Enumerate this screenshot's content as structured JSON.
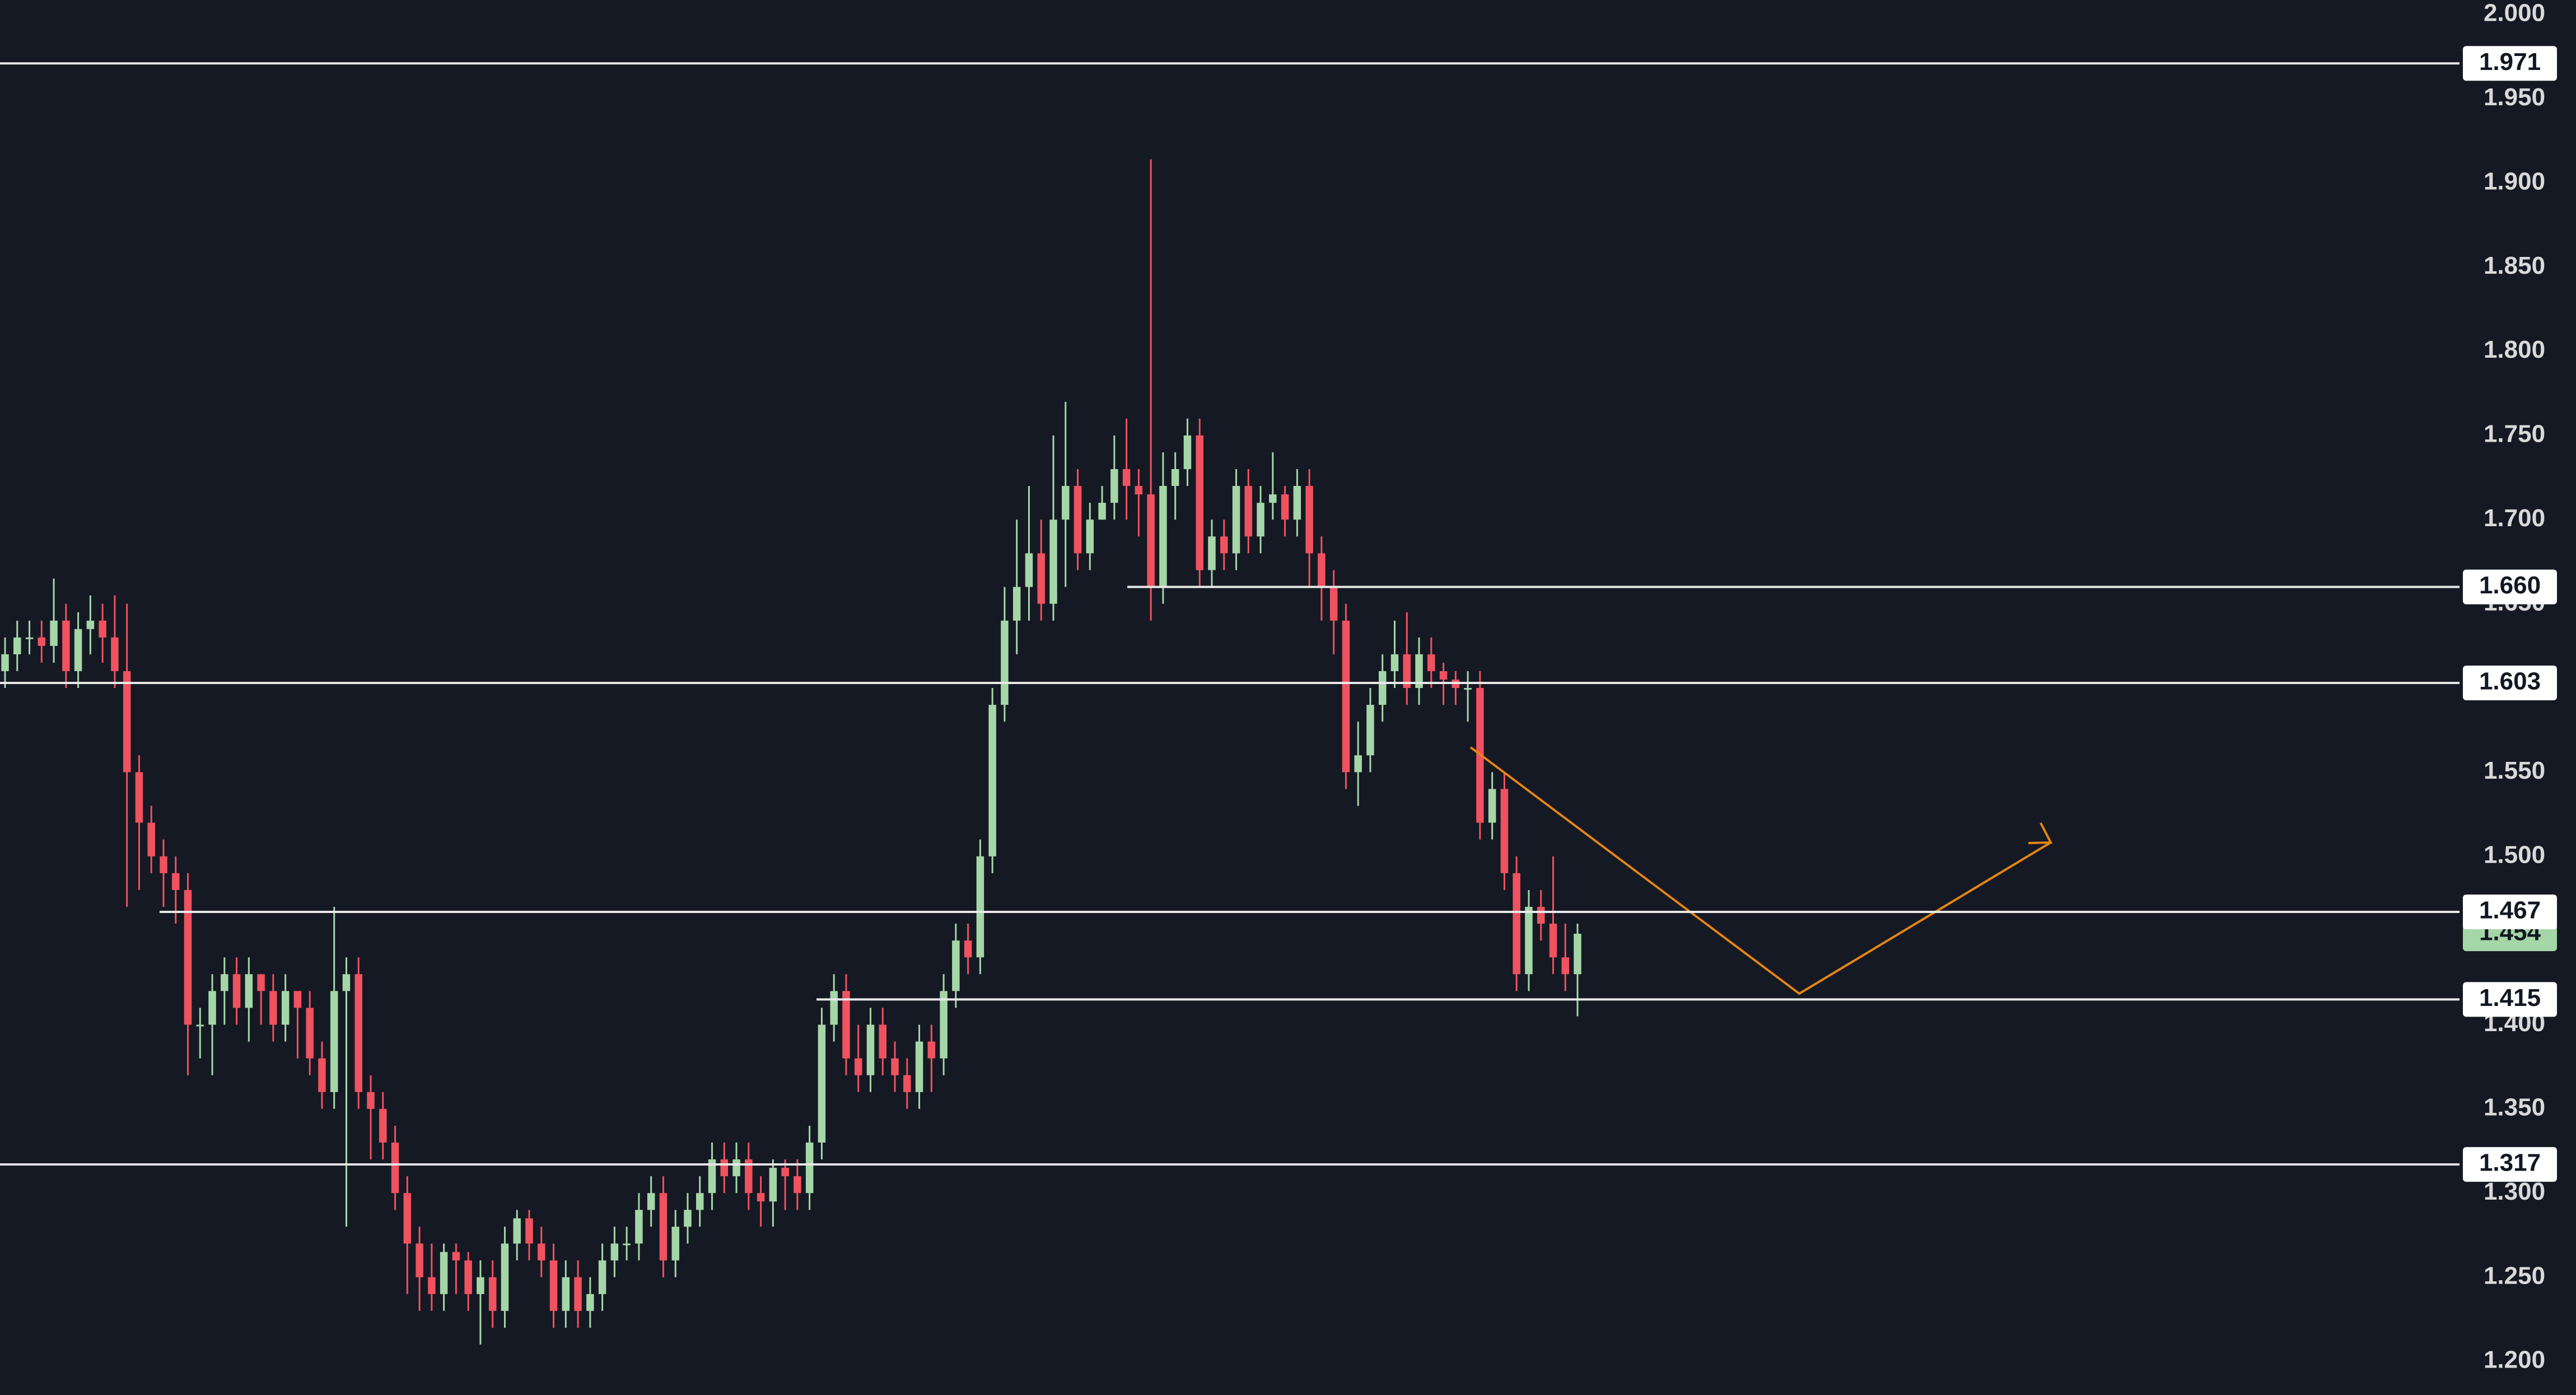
{
  "chart_data": {
    "type": "candlestick",
    "up_color": "#a5d6a7",
    "down_color": "#f0525f",
    "level_color": "#e8e8e8",
    "ylim": [
      1.2,
      2.0
    ],
    "yticks": [
      {
        "value": 1.2,
        "label": "1.200"
      },
      {
        "value": 1.25,
        "label": "1.250"
      },
      {
        "value": 1.3,
        "label": "1.300"
      },
      {
        "value": 1.35,
        "label": "1.350"
      },
      {
        "value": 1.4,
        "label": "1.400"
      },
      {
        "value": 1.45,
        "label": "1.450"
      },
      {
        "value": 1.5,
        "label": "1.500"
      },
      {
        "value": 1.55,
        "label": "1.550"
      },
      {
        "value": 1.6,
        "label": "1.600"
      },
      {
        "value": 1.65,
        "label": "1.650"
      },
      {
        "value": 1.7,
        "label": "1.700"
      },
      {
        "value": 1.75,
        "label": "1.750"
      },
      {
        "value": 1.8,
        "label": "1.800"
      },
      {
        "value": 1.85,
        "label": "1.850"
      },
      {
        "value": 1.9,
        "label": "1.900"
      },
      {
        "value": 1.95,
        "label": "1.950"
      },
      {
        "value": 2.0,
        "label": "2.000"
      }
    ],
    "levels": [
      1.971,
      {
        "value": 1.66,
        "label": "1.660"
      },
      1.603,
      1.467,
      1.415,
      1.317
    ],
    "open": [
      1.61,
      1.62,
      1.63,
      1.63,
      1.625,
      1.64,
      1.61,
      1.635,
      1.64,
      1.63,
      1.61,
      1.55,
      1.52,
      1.5,
      1.49,
      1.48,
      1.4,
      1.4,
      1.42,
      1.43,
      1.41,
      1.43,
      1.42,
      1.4,
      1.42,
      1.41,
      1.38,
      1.36,
      1.42,
      1.43,
      1.36,
      1.35,
      1.33,
      1.3,
      1.27,
      1.25,
      1.24,
      1.265,
      1.26,
      1.24,
      1.25,
      1.23,
      1.27,
      1.285,
      1.27,
      1.26,
      1.23,
      1.25,
      1.23,
      1.24,
      1.26,
      1.27,
      1.27,
      1.29,
      1.3,
      1.26,
      1.28,
      1.29,
      1.3,
      1.32,
      1.31,
      1.32,
      1.3,
      1.295,
      1.315,
      1.31,
      1.3,
      1.33,
      1.4,
      1.42,
      1.38,
      1.37,
      1.4,
      1.38,
      1.37,
      1.36,
      1.39,
      1.38,
      1.42,
      1.45,
      1.44,
      1.5,
      1.59,
      1.64,
      1.66,
      1.68,
      1.65,
      1.7,
      1.72,
      1.68,
      1.7,
      1.71,
      1.73,
      1.72,
      1.715,
      1.66,
      1.72,
      1.73,
      1.75,
      1.67,
      1.69,
      1.68,
      1.72,
      1.69,
      1.71,
      1.715,
      1.7,
      1.72,
      1.68,
      1.66,
      1.64,
      1.55,
      1.56,
      1.59,
      1.61,
      1.62,
      1.6,
      1.62,
      1.61,
      1.605,
      1.6,
      1.6,
      1.52,
      1.54,
      1.49,
      1.43,
      1.47,
      1.46,
      1.44,
      1.43
    ],
    "high": [
      1.63,
      1.64,
      1.64,
      1.64,
      1.665,
      1.65,
      1.645,
      1.655,
      1.65,
      1.655,
      1.65,
      1.56,
      1.53,
      1.51,
      1.5,
      1.49,
      1.41,
      1.43,
      1.44,
      1.44,
      1.44,
      1.43,
      1.43,
      1.43,
      1.42,
      1.42,
      1.39,
      1.47,
      1.44,
      1.44,
      1.37,
      1.36,
      1.34,
      1.31,
      1.28,
      1.27,
      1.27,
      1.27,
      1.265,
      1.26,
      1.26,
      1.28,
      1.29,
      1.29,
      1.28,
      1.27,
      1.26,
      1.26,
      1.25,
      1.27,
      1.28,
      1.28,
      1.3,
      1.31,
      1.31,
      1.29,
      1.3,
      1.31,
      1.33,
      1.33,
      1.33,
      1.33,
      1.31,
      1.32,
      1.32,
      1.32,
      1.34,
      1.41,
      1.43,
      1.43,
      1.4,
      1.41,
      1.41,
      1.39,
      1.38,
      1.4,
      1.4,
      1.43,
      1.46,
      1.46,
      1.51,
      1.6,
      1.66,
      1.7,
      1.72,
      1.7,
      1.75,
      1.77,
      1.73,
      1.71,
      1.72,
      1.75,
      1.76,
      1.73,
      1.914,
      1.74,
      1.74,
      1.76,
      1.76,
      1.7,
      1.7,
      1.73,
      1.73,
      1.72,
      1.74,
      1.72,
      1.73,
      1.73,
      1.69,
      1.67,
      1.65,
      1.58,
      1.6,
      1.62,
      1.64,
      1.645,
      1.63,
      1.63,
      1.615,
      1.61,
      1.61,
      1.61,
      1.55,
      1.55,
      1.5,
      1.48,
      1.48,
      1.5,
      1.46,
      1.46
    ],
    "low": [
      1.6,
      1.61,
      1.62,
      1.615,
      1.615,
      1.6,
      1.6,
      1.62,
      1.615,
      1.6,
      1.47,
      1.48,
      1.49,
      1.47,
      1.46,
      1.37,
      1.38,
      1.37,
      1.4,
      1.4,
      1.39,
      1.4,
      1.39,
      1.39,
      1.38,
      1.37,
      1.35,
      1.35,
      1.28,
      1.35,
      1.32,
      1.32,
      1.29,
      1.24,
      1.23,
      1.23,
      1.23,
      1.24,
      1.23,
      1.21,
      1.22,
      1.22,
      1.26,
      1.26,
      1.25,
      1.22,
      1.22,
      1.22,
      1.22,
      1.23,
      1.25,
      1.26,
      1.26,
      1.28,
      1.25,
      1.25,
      1.27,
      1.28,
      1.29,
      1.3,
      1.3,
      1.29,
      1.28,
      1.28,
      1.29,
      1.29,
      1.29,
      1.32,
      1.39,
      1.37,
      1.36,
      1.36,
      1.37,
      1.36,
      1.35,
      1.35,
      1.36,
      1.37,
      1.41,
      1.43,
      1.43,
      1.49,
      1.58,
      1.62,
      1.64,
      1.64,
      1.64,
      1.66,
      1.67,
      1.67,
      1.7,
      1.7,
      1.7,
      1.69,
      1.64,
      1.65,
      1.7,
      1.72,
      1.66,
      1.66,
      1.67,
      1.67,
      1.68,
      1.68,
      1.7,
      1.69,
      1.69,
      1.66,
      1.64,
      1.62,
      1.54,
      1.53,
      1.55,
      1.58,
      1.6,
      1.59,
      1.59,
      1.6,
      1.59,
      1.59,
      1.58,
      1.51,
      1.51,
      1.48,
      1.42,
      1.42,
      1.45,
      1.43,
      1.42,
      1.405
    ],
    "close": [
      1.62,
      1.63,
      1.63,
      1.625,
      1.64,
      1.61,
      1.635,
      1.64,
      1.63,
      1.61,
      1.55,
      1.52,
      1.5,
      1.49,
      1.48,
      1.4,
      1.4,
      1.42,
      1.43,
      1.41,
      1.43,
      1.42,
      1.4,
      1.42,
      1.41,
      1.38,
      1.36,
      1.42,
      1.43,
      1.36,
      1.35,
      1.33,
      1.3,
      1.27,
      1.25,
      1.24,
      1.265,
      1.26,
      1.24,
      1.25,
      1.23,
      1.27,
      1.285,
      1.27,
      1.26,
      1.23,
      1.25,
      1.23,
      1.24,
      1.26,
      1.27,
      1.27,
      1.29,
      1.3,
      1.26,
      1.28,
      1.29,
      1.3,
      1.32,
      1.31,
      1.32,
      1.3,
      1.295,
      1.315,
      1.31,
      1.3,
      1.33,
      1.4,
      1.42,
      1.38,
      1.37,
      1.4,
      1.38,
      1.37,
      1.36,
      1.39,
      1.38,
      1.42,
      1.45,
      1.44,
      1.5,
      1.59,
      1.64,
      1.66,
      1.68,
      1.65,
      1.7,
      1.72,
      1.68,
      1.7,
      1.71,
      1.73,
      1.72,
      1.715,
      1.66,
      1.72,
      1.73,
      1.75,
      1.67,
      1.69,
      1.68,
      1.72,
      1.69,
      1.71,
      1.715,
      1.7,
      1.72,
      1.68,
      1.66,
      1.64,
      1.55,
      1.56,
      1.59,
      1.61,
      1.62,
      1.6,
      1.62,
      1.61,
      1.605,
      1.6,
      1.6,
      1.52,
      1.54,
      1.49,
      1.43,
      1.47,
      1.46,
      1.44,
      1.43,
      1.454
    ]
  }
}
